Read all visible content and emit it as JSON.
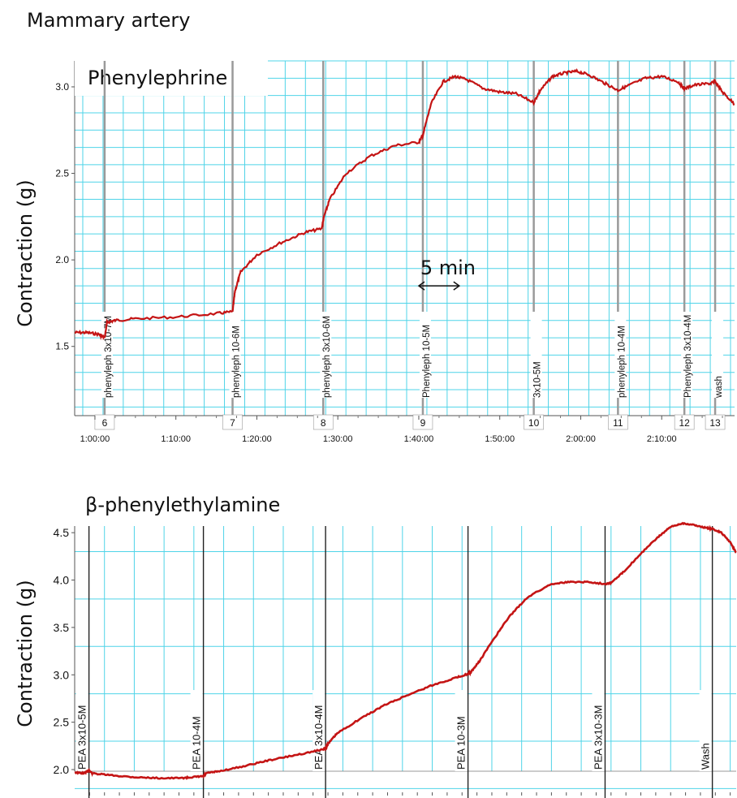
{
  "figure_title": "Mammary artery",
  "colors": {
    "grid": "#4fd4e8",
    "trace": "#c41414",
    "event_top": "#9a9a9a",
    "event_bottom": "#222222"
  },
  "chart_data": [
    {
      "type": "line",
      "title": "Phenylephrine",
      "ylabel": "Contraction (g)",
      "xlabel": "",
      "ylim": [
        1.1,
        3.15
      ],
      "xlim_minutes": [
        57.5,
        139
      ],
      "y_ticks": [
        1.5,
        2.0,
        2.5,
        3.0
      ],
      "x_ticks": [
        {
          "v": 60,
          "label": "1:00:00"
        },
        {
          "v": 70,
          "label": "1:10:00"
        },
        {
          "v": 80,
          "label": "1:20:00"
        },
        {
          "v": 90,
          "label": "1:30:00"
        },
        {
          "v": 100,
          "label": "1:40:00"
        },
        {
          "v": 110,
          "label": "1:50:00"
        },
        {
          "v": 120,
          "label": "2:00:00"
        },
        {
          "v": 130,
          "label": "2:10:00"
        }
      ],
      "annotation": {
        "label": "5 min",
        "x_start_minutes": 100,
        "x_end_minutes": 105,
        "y": 1.85
      },
      "events": [
        {
          "x": 61.2,
          "label": "phenyleph 3x10-7M",
          "number": "6"
        },
        {
          "x": 77.0,
          "label": "phenyleph 10-6M",
          "number": "7"
        },
        {
          "x": 88.2,
          "label": "phenyleph 3x10-6M",
          "number": "8"
        },
        {
          "x": 100.5,
          "label": "Phenyleph 10-5M",
          "number": "9"
        },
        {
          "x": 114.2,
          "label": "3x10-5M",
          "number": "10"
        },
        {
          "x": 124.6,
          "label": "phenyleph 10-4M",
          "number": "11"
        },
        {
          "x": 132.8,
          "label": "Phenyleph 3x10-4M",
          "number": "12"
        },
        {
          "x": 136.6,
          "label": "wash",
          "number": "13"
        }
      ],
      "series": [
        {
          "x": [
            57.5,
            59,
            60.5,
            61.2,
            61.5,
            62.5,
            65,
            70,
            75,
            77,
            77.3,
            78,
            80,
            83,
            86,
            88,
            88.3,
            89,
            91,
            94,
            97,
            100,
            100.5,
            101.5,
            103,
            104.5,
            106,
            108,
            110,
            112,
            114.2,
            115,
            116.5,
            118,
            119.5,
            121,
            123,
            124.6,
            126,
            128,
            130,
            132,
            132.8,
            134,
            136,
            136.6,
            137.5,
            139
          ],
          "y": [
            1.58,
            1.58,
            1.57,
            1.55,
            1.64,
            1.65,
            1.66,
            1.67,
            1.69,
            1.7,
            1.82,
            1.93,
            2.03,
            2.1,
            2.16,
            2.18,
            2.25,
            2.35,
            2.5,
            2.6,
            2.66,
            2.68,
            2.72,
            2.9,
            3.03,
            3.06,
            3.04,
            2.99,
            2.97,
            2.96,
            2.91,
            2.98,
            3.06,
            3.08,
            3.09,
            3.07,
            3.02,
            2.98,
            3.01,
            3.05,
            3.06,
            3.03,
            2.99,
            3.01,
            3.02,
            3.03,
            2.97,
            2.9
          ]
        }
      ]
    },
    {
      "type": "line",
      "title": "β-phenylethylamine",
      "ylabel": "Contraction (g)",
      "xlabel": "",
      "ylim": [
        1.7,
        4.57
      ],
      "xlim_minutes": [
        0,
        111
      ],
      "y_ticks": [
        2.0,
        2.5,
        3.0,
        3.5,
        4.0,
        4.5
      ],
      "events": [
        {
          "x": 2.4,
          "label": "PEA 3x10-5M"
        },
        {
          "x": 21.6,
          "label": "PEA 10-4M"
        },
        {
          "x": 42.1,
          "label": "PEA 3x10-4M"
        },
        {
          "x": 66.0,
          "label": "PEA  10-3M"
        },
        {
          "x": 89.0,
          "label": "PEA 3x10-3M"
        },
        {
          "x": 107.0,
          "label": "Wash"
        }
      ],
      "series": [
        {
          "x": [
            0,
            1.5,
            2.4,
            3,
            6,
            10,
            14,
            18,
            19.8,
            21.6,
            22,
            24,
            28,
            32,
            36,
            40,
            42,
            42.5,
            44,
            48,
            52,
            56,
            60,
            64,
            66,
            66.5,
            68,
            70,
            73,
            76,
            80,
            83,
            86,
            89,
            90,
            92,
            95,
            98,
            100,
            102,
            104,
            106,
            107,
            108.5,
            110,
            111
          ],
          "y": [
            1.97,
            1.96,
            1.99,
            1.96,
            1.94,
            1.92,
            1.91,
            1.91,
            1.92,
            1.93,
            1.96,
            1.98,
            2.03,
            2.09,
            2.14,
            2.19,
            2.22,
            2.27,
            2.38,
            2.54,
            2.68,
            2.79,
            2.89,
            2.97,
            3.01,
            3.03,
            3.15,
            3.35,
            3.62,
            3.82,
            3.96,
            3.98,
            3.98,
            3.96,
            3.97,
            4.08,
            4.28,
            4.46,
            4.56,
            4.6,
            4.58,
            4.55,
            4.54,
            4.5,
            4.4,
            4.29
          ]
        }
      ]
    }
  ]
}
